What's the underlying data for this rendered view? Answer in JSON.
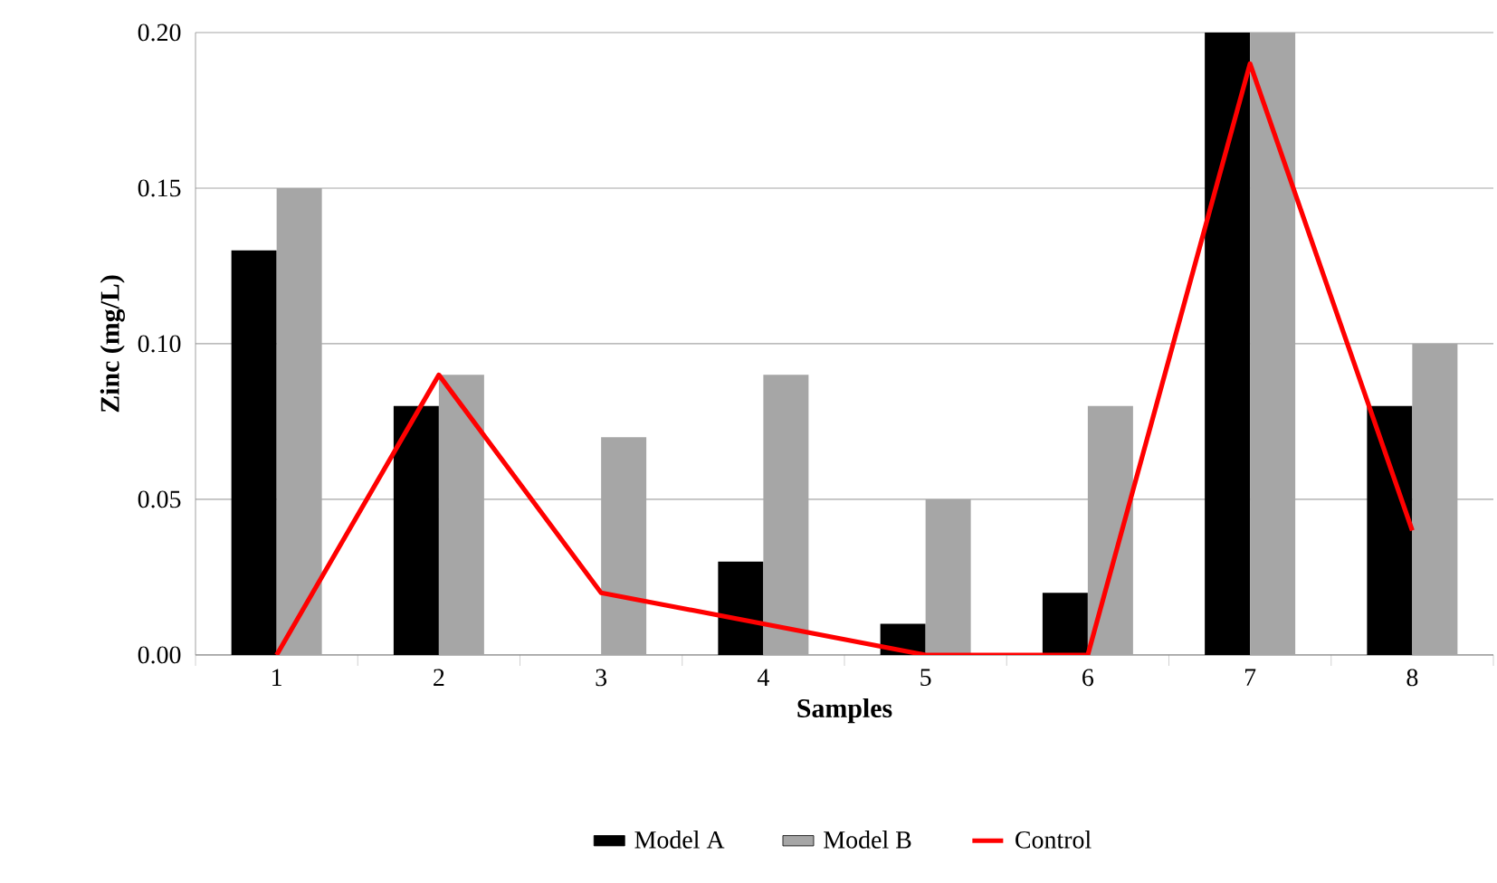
{
  "chart_data": {
    "type": "bar",
    "xlabel": "Samples",
    "ylabel": "Zinc (mg/L)",
    "categories": [
      "1",
      "2",
      "3",
      "4",
      "5",
      "6",
      "7",
      "8"
    ],
    "series": [
      {
        "name": "Model A",
        "color": "#000000",
        "values": [
          0.13,
          0.08,
          0,
          0.03,
          0.01,
          0.02,
          0.2,
          0.08
        ]
      },
      {
        "name": "Model B",
        "color": "#a6a6a6",
        "values": [
          0.15,
          0.09,
          0.07,
          0.09,
          0.05,
          0.08,
          0.2,
          0.1
        ]
      },
      {
        "name": "Control",
        "type": "line",
        "color": "#ff0000",
        "values": [
          0,
          0.09,
          0.02,
          0.01,
          0,
          0,
          0.19,
          0.04
        ]
      }
    ],
    "ylim": [
      0,
      0.2
    ],
    "yticks": [
      {
        "value": 0,
        "label": "0.00"
      },
      {
        "value": 0.05,
        "label": "0.05"
      },
      {
        "value": 0.1,
        "label": "0.10"
      },
      {
        "value": 0.15,
        "label": "0.15"
      },
      {
        "value": 0.2,
        "label": "0.20"
      }
    ],
    "grid": "y",
    "legend": "bottom",
    "marker": "none",
    "line_style": "solid"
  }
}
